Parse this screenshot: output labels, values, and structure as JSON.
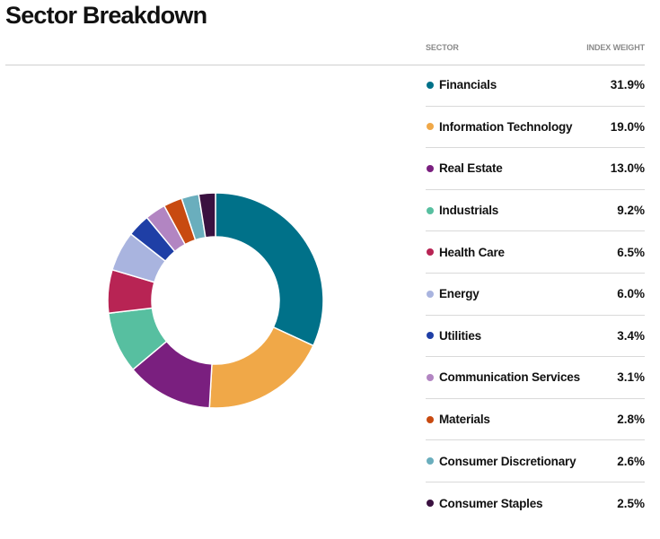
{
  "title": "Sector Breakdown",
  "legend_headers": {
    "sector": "SECTOR",
    "weight": "INDEX WEIGHT"
  },
  "chart_data": {
    "type": "pie",
    "donut": true,
    "title": "Sector Breakdown",
    "categories": [
      "Financials",
      "Information Technology",
      "Real Estate",
      "Industrials",
      "Health Care",
      "Energy",
      "Utilities",
      "Communication Services",
      "Materials",
      "Consumer Discretionary",
      "Consumer Staples"
    ],
    "values": [
      31.9,
      19.0,
      13.0,
      9.2,
      6.5,
      6.0,
      3.4,
      3.1,
      2.8,
      2.6,
      2.5
    ],
    "value_labels": [
      "31.9%",
      "19.0%",
      "13.0%",
      "9.2%",
      "6.5%",
      "6.0%",
      "3.4%",
      "3.1%",
      "2.8%",
      "2.6%",
      "2.5%"
    ],
    "colors": [
      "#007189",
      "#f0a848",
      "#7a1f7f",
      "#57bfa0",
      "#b82454",
      "#a9b4df",
      "#1f3fa6",
      "#b285c2",
      "#c84a10",
      "#6aaebd",
      "#3a1140"
    ],
    "legend_position": "right"
  }
}
